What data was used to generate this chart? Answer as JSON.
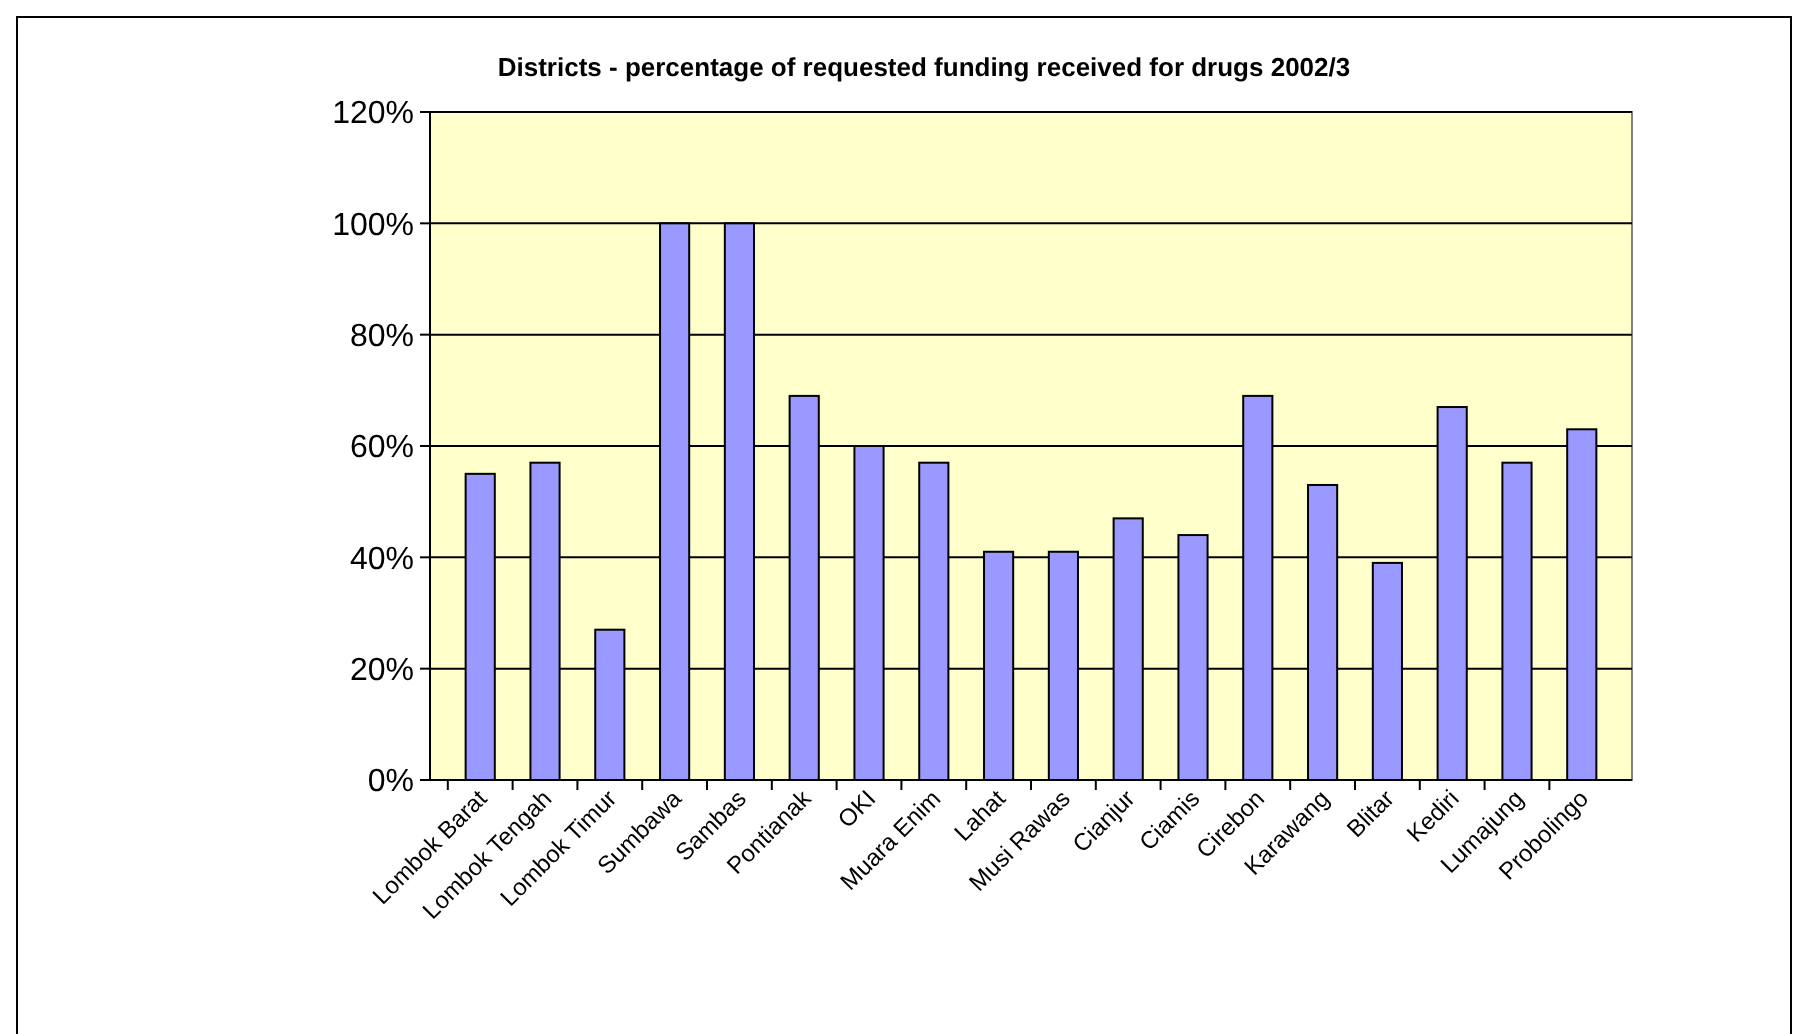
{
  "chart_data": {
    "type": "bar",
    "title": "Districts - percentage of requested funding received for drugs 2002/3",
    "categories": [
      "Lombok Barat",
      "Lombok Tengah",
      "Lombok Timur",
      "Sumbawa",
      "Sambas",
      "Pontianak",
      "OKI",
      "Muara Enim",
      "Lahat",
      "Musi Rawas",
      "Cianjur",
      "Ciamis",
      "Cirebon",
      "Karawang",
      "Blitar",
      "Kediri",
      "Lumajung",
      "Probolingo"
    ],
    "values": [
      55,
      57,
      27,
      100,
      100,
      69,
      60,
      57,
      41,
      41,
      47,
      44,
      69,
      53,
      39,
      67,
      57,
      63
    ],
    "color": "#9999ff",
    "ylim": [
      0,
      120
    ],
    "yticks": [
      {
        "value": 0,
        "label": "0%"
      },
      {
        "value": 20,
        "label": "20%"
      },
      {
        "value": 40,
        "label": "40%"
      },
      {
        "value": 60,
        "label": "60%"
      },
      {
        "value": 80,
        "label": "80%"
      },
      {
        "value": 100,
        "label": "100%"
      },
      {
        "value": 120,
        "label": "120%"
      }
    ],
    "grid": "y"
  }
}
